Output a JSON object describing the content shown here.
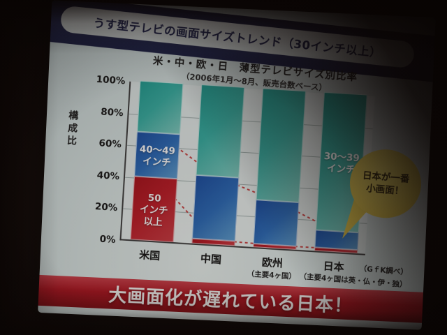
{
  "slide": {
    "title": "うす型テレビの画面サイズトレンド（30インチ以上）",
    "banner": "大画面化が遅れている日本！",
    "balloon": {
      "line1": "日本が一番",
      "line2": "小画面！"
    },
    "notes": {
      "source": "（GｆK調べ）",
      "detail": "（主要4ヶ国は英・仏・伊・独）"
    }
  },
  "chart_data": {
    "type": "bar",
    "stacked": true,
    "title": "米・中・欧・日　薄型テレビサイズ別比率",
    "subtitle": "（2006年1月～8月、販売台数ベース）",
    "ylabel": "構成比",
    "ylim": [
      0,
      100
    ],
    "yticks": [
      "0%",
      "20%",
      "40%",
      "60%",
      "80%",
      "100%"
    ],
    "grid": true,
    "legend_position": "in-bar",
    "categories": [
      "米国",
      "中国",
      "欧州",
      "日本"
    ],
    "category_subs": [
      "",
      "",
      "（主要4ヶ国）",
      ""
    ],
    "series": [
      {
        "name": "50インチ以上",
        "color": "#d5121e",
        "values": [
          40,
          3,
          2,
          2
        ]
      },
      {
        "name": "40～49インチ",
        "color": "#1e6ccb",
        "values": [
          28,
          40,
          28,
          11
        ]
      },
      {
        "name": "30～39インチ",
        "color": "#22b4a6",
        "values": [
          32,
          57,
          70,
          87
        ]
      }
    ],
    "bar_labels": [
      {
        "bar": 0,
        "series": 1,
        "text": "40～49\nインチ"
      },
      {
        "bar": 0,
        "series": 0,
        "text": "50\nインチ\n以上"
      },
      {
        "bar": 3,
        "series": 2,
        "text": "30～39\nインチ"
      }
    ],
    "trend_lines": [
      {
        "style": "dashed",
        "color": "#e03838",
        "values": [
          68,
          43,
          30,
          13
        ]
      },
      {
        "style": "dashed",
        "color": "#e03838",
        "values": [
          40,
          3,
          2,
          2
        ]
      }
    ]
  }
}
